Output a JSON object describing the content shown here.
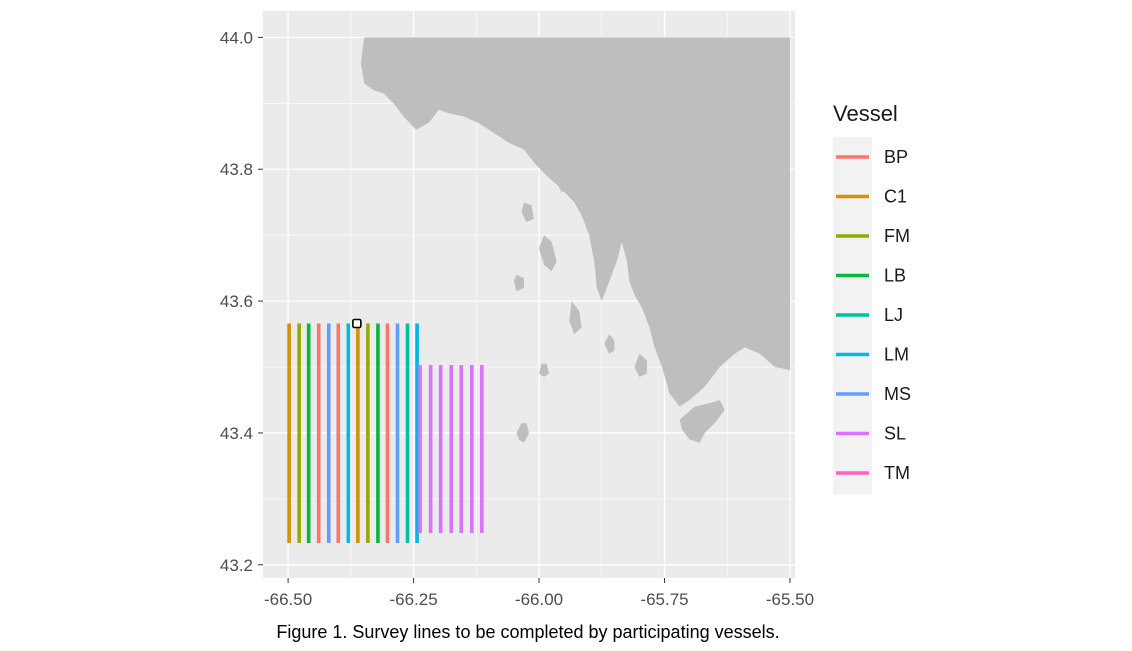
{
  "chart_data": {
    "type": "line",
    "caption": "Figure 1. Survey lines to be completed by participating vessels.",
    "xlim": [
      -66.55,
      -65.49
    ],
    "ylim": [
      43.18,
      44.04
    ],
    "x_ticks": [
      -66.5,
      -66.25,
      -66.0,
      -65.75,
      -65.5
    ],
    "x_tick_labels": [
      "-66.50",
      "-66.25",
      "-66.00",
      "-65.75",
      "-65.50"
    ],
    "y_ticks": [
      43.2,
      43.4,
      43.6,
      43.8,
      44.0
    ],
    "y_tick_labels": [
      "43.2",
      "43.4",
      "43.6",
      "43.8",
      "44.0"
    ],
    "grid": true,
    "background_color": "#ebebeb",
    "land_color": "#bebebe",
    "legend_title": "Vessel",
    "legend_position": "right",
    "series": [
      {
        "name": "BP",
        "color": "#F8766D"
      },
      {
        "name": "C1",
        "color": "#D39200"
      },
      {
        "name": "FM",
        "color": "#93AA00"
      },
      {
        "name": "LB",
        "color": "#00BA38"
      },
      {
        "name": "LJ",
        "color": "#00C19F"
      },
      {
        "name": "LM",
        "color": "#00B9E3"
      },
      {
        "name": "MS",
        "color": "#619CFF"
      },
      {
        "name": "SL",
        "color": "#DB72FB"
      },
      {
        "name": "TM",
        "color": "#FF61C3"
      }
    ],
    "survey_lines": [
      {
        "vessel": "C1",
        "lon": -66.498,
        "lat": [
          43.233,
          43.566
        ]
      },
      {
        "vessel": "FM",
        "lon": -66.478,
        "lat": [
          43.233,
          43.566
        ]
      },
      {
        "vessel": "LB",
        "lon": -66.459,
        "lat": [
          43.233,
          43.566
        ]
      },
      {
        "vessel": "BP",
        "lon": -66.439,
        "lat": [
          43.233,
          43.566
        ]
      },
      {
        "vessel": "MS",
        "lon": -66.419,
        "lat": [
          43.233,
          43.566
        ]
      },
      {
        "vessel": "BP",
        "lon": -66.4,
        "lat": [
          43.233,
          43.566
        ]
      },
      {
        "vessel": "LM",
        "lon": -66.38,
        "lat": [
          43.233,
          43.566
        ]
      },
      {
        "vessel": "C1",
        "lon": -66.361,
        "lat": [
          43.233,
          43.566
        ]
      },
      {
        "vessel": "FM",
        "lon": -66.341,
        "lat": [
          43.233,
          43.566
        ]
      },
      {
        "vessel": "LB",
        "lon": -66.321,
        "lat": [
          43.233,
          43.566
        ]
      },
      {
        "vessel": "BP",
        "lon": -66.302,
        "lat": [
          43.233,
          43.566
        ]
      },
      {
        "vessel": "MS",
        "lon": -66.282,
        "lat": [
          43.233,
          43.566
        ]
      },
      {
        "vessel": "LJ",
        "lon": -66.262,
        "lat": [
          43.233,
          43.566
        ]
      },
      {
        "vessel": "LM",
        "lon": -66.243,
        "lat": [
          43.233,
          43.566
        ]
      },
      {
        "vessel": "SL",
        "lon": -66.237,
        "lat": [
          43.248,
          43.503
        ]
      },
      {
        "vessel": "SL",
        "lon": -66.216,
        "lat": [
          43.248,
          43.503
        ]
      },
      {
        "vessel": "SL",
        "lon": -66.196,
        "lat": [
          43.248,
          43.503
        ]
      },
      {
        "vessel": "SL",
        "lon": -66.175,
        "lat": [
          43.248,
          43.503
        ]
      },
      {
        "vessel": "SL",
        "lon": -66.155,
        "lat": [
          43.248,
          43.503
        ]
      },
      {
        "vessel": "SL",
        "lon": -66.134,
        "lat": [
          43.248,
          43.503
        ]
      },
      {
        "vessel": "SL",
        "lon": -66.114,
        "lat": [
          43.248,
          43.503
        ]
      }
    ],
    "marker": {
      "lon": -66.363,
      "lat": 43.566
    },
    "land": {
      "mainland": [
        [
          -66.348,
          44.0
        ],
        [
          -65.5,
          44.0
        ],
        [
          -65.5,
          43.495
        ],
        [
          -65.53,
          43.5
        ],
        [
          -65.56,
          43.52
        ],
        [
          -65.59,
          43.53
        ],
        [
          -65.61,
          43.52
        ],
        [
          -65.64,
          43.5
        ],
        [
          -65.67,
          43.47
        ],
        [
          -65.7,
          43.45
        ],
        [
          -65.72,
          43.44
        ],
        [
          -65.74,
          43.46
        ],
        [
          -65.755,
          43.5
        ],
        [
          -65.77,
          43.53
        ],
        [
          -65.78,
          43.56
        ],
        [
          -65.795,
          43.59
        ],
        [
          -65.81,
          43.61
        ],
        [
          -65.82,
          43.63
        ],
        [
          -65.825,
          43.66
        ],
        [
          -65.835,
          43.69
        ],
        [
          -65.845,
          43.66
        ],
        [
          -65.86,
          43.63
        ],
        [
          -65.875,
          43.6
        ],
        [
          -65.885,
          43.62
        ],
        [
          -65.89,
          43.66
        ],
        [
          -65.9,
          43.7
        ],
        [
          -65.915,
          43.73
        ],
        [
          -65.93,
          43.75
        ],
        [
          -65.955,
          43.77
        ],
        [
          -65.985,
          43.79
        ],
        [
          -66.01,
          43.81
        ],
        [
          -66.03,
          43.83
        ],
        [
          -66.06,
          43.84
        ],
        [
          -66.09,
          43.855
        ],
        [
          -66.12,
          43.87
        ],
        [
          -66.15,
          43.88
        ],
        [
          -66.18,
          43.885
        ],
        [
          -66.2,
          43.89
        ],
        [
          -66.22,
          43.87
        ],
        [
          -66.245,
          43.86
        ],
        [
          -66.27,
          43.88
        ],
        [
          -66.29,
          43.9
        ],
        [
          -66.31,
          43.915
        ],
        [
          -66.33,
          43.92
        ],
        [
          -66.348,
          43.93
        ],
        [
          -66.355,
          43.96
        ],
        [
          -66.352,
          43.98
        ]
      ],
      "southern_peninsula": [
        [
          -65.72,
          43.42
        ],
        [
          -65.69,
          43.44
        ],
        [
          -65.66,
          43.445
        ],
        [
          -65.64,
          43.45
        ],
        [
          -65.63,
          43.435
        ],
        [
          -65.65,
          43.415
        ],
        [
          -65.67,
          43.4
        ],
        [
          -65.68,
          43.385
        ],
        [
          -65.7,
          43.39
        ],
        [
          -65.715,
          43.405
        ]
      ],
      "islands": [
        [
          [
            -66.025,
            43.415
          ],
          [
            -66.02,
            43.4
          ],
          [
            -66.03,
            43.385
          ],
          [
            -66.04,
            43.39
          ],
          [
            -66.045,
            43.4
          ],
          [
            -66.035,
            43.415
          ]
        ],
        [
          [
            -65.985,
            43.505
          ],
          [
            -65.98,
            43.49
          ],
          [
            -65.99,
            43.485
          ],
          [
            -66.0,
            43.49
          ],
          [
            -65.995,
            43.505
          ]
        ],
        [
          [
            -65.99,
            43.7
          ],
          [
            -65.975,
            43.69
          ],
          [
            -65.965,
            43.66
          ],
          [
            -65.975,
            43.645
          ],
          [
            -65.99,
            43.655
          ],
          [
            -66.0,
            43.68
          ]
        ],
        [
          [
            -65.935,
            43.6
          ],
          [
            -65.92,
            43.585
          ],
          [
            -65.915,
            43.56
          ],
          [
            -65.93,
            43.55
          ],
          [
            -65.94,
            43.57
          ]
        ],
        [
          [
            -65.9,
            43.76
          ],
          [
            -65.885,
            43.75
          ],
          [
            -65.88,
            43.73
          ],
          [
            -65.89,
            43.72
          ],
          [
            -65.905,
            43.735
          ]
        ],
        [
          [
            -65.96,
            43.8
          ],
          [
            -65.945,
            43.79
          ],
          [
            -65.94,
            43.77
          ],
          [
            -65.955,
            43.765
          ],
          [
            -65.965,
            43.78
          ]
        ],
        [
          [
            -66.03,
            43.75
          ],
          [
            -66.015,
            43.745
          ],
          [
            -66.01,
            43.725
          ],
          [
            -66.025,
            43.72
          ],
          [
            -66.035,
            43.735
          ]
        ],
        [
          [
            -66.045,
            43.64
          ],
          [
            -66.03,
            43.635
          ],
          [
            -66.03,
            43.62
          ],
          [
            -66.045,
            43.615
          ],
          [
            -66.05,
            43.63
          ]
        ],
        [
          [
            -65.86,
            43.55
          ],
          [
            -65.85,
            43.54
          ],
          [
            -65.85,
            43.525
          ],
          [
            -65.86,
            43.52
          ],
          [
            -65.87,
            43.535
          ]
        ],
        [
          [
            -65.8,
            43.52
          ],
          [
            -65.785,
            43.51
          ],
          [
            -65.785,
            43.49
          ],
          [
            -65.8,
            43.485
          ],
          [
            -65.81,
            43.5
          ]
        ]
      ]
    }
  }
}
